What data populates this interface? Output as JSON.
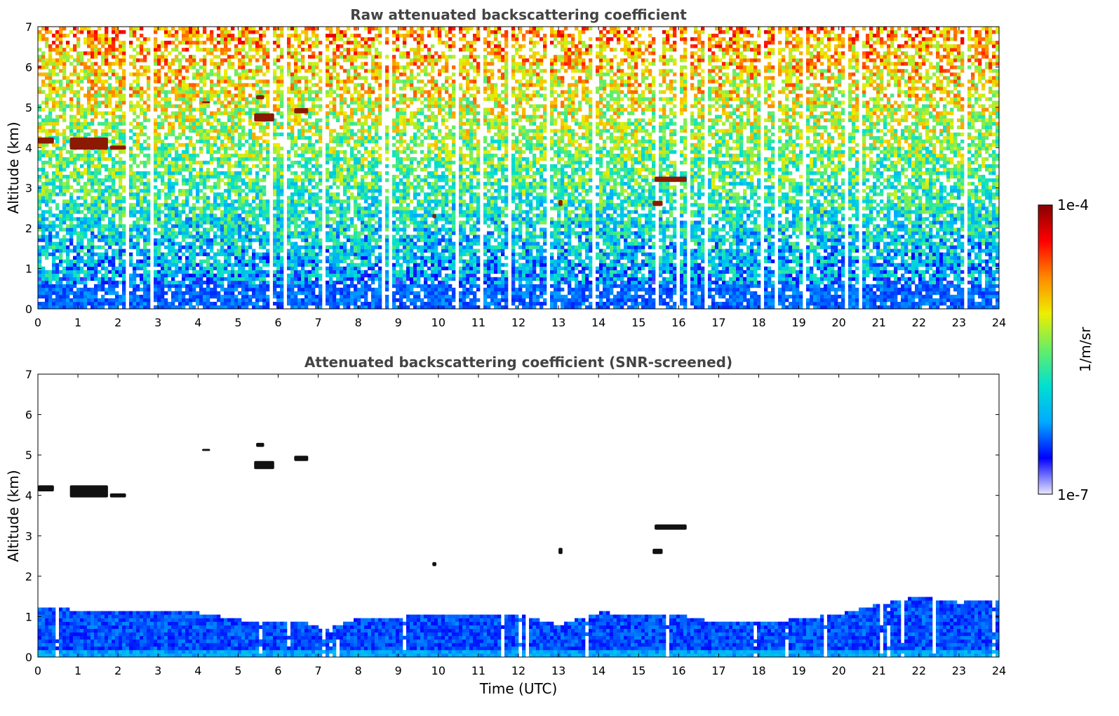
{
  "chart_data": [
    {
      "type": "heatmap",
      "title": "Raw attenuated backscattering coefficient",
      "xlabel": "",
      "ylabel": "Altitude (km)",
      "xlim": [
        0,
        24
      ],
      "ylim": [
        0,
        7
      ],
      "xticks": [
        0,
        1,
        2,
        3,
        4,
        5,
        6,
        7,
        8,
        9,
        10,
        11,
        12,
        13,
        14,
        15,
        16,
        17,
        18,
        19,
        20,
        21,
        22,
        23,
        24
      ],
      "yticks": [
        0,
        1,
        2,
        3,
        4,
        5,
        6,
        7
      ],
      "screened": false,
      "cloud_layers": [
        {
          "t0": 0.0,
          "t1": 0.4,
          "z0": 4.1,
          "z1": 4.25
        },
        {
          "t0": 0.8,
          "t1": 1.75,
          "z0": 3.95,
          "z1": 4.25
        },
        {
          "t0": 1.8,
          "t1": 2.2,
          "z0": 3.95,
          "z1": 4.05
        },
        {
          "t0": 4.1,
          "t1": 4.3,
          "z0": 5.1,
          "z1": 5.15
        },
        {
          "t0": 5.45,
          "t1": 5.65,
          "z0": 5.2,
          "z1": 5.3
        },
        {
          "t0": 5.4,
          "t1": 5.9,
          "z0": 4.65,
          "z1": 4.85
        },
        {
          "t0": 6.4,
          "t1": 6.75,
          "z0": 4.85,
          "z1": 4.98
        },
        {
          "t0": 9.85,
          "t1": 9.95,
          "z0": 2.25,
          "z1": 2.35
        },
        {
          "t0": 13.0,
          "t1": 13.1,
          "z0": 2.55,
          "z1": 2.7
        },
        {
          "t0": 15.35,
          "t1": 15.6,
          "z0": 2.55,
          "z1": 2.68
        },
        {
          "t0": 15.4,
          "t1": 16.2,
          "z0": 3.15,
          "z1": 3.28
        }
      ]
    },
    {
      "type": "heatmap",
      "title": "Attenuated backscattering coefficient (SNR-screened)",
      "xlabel": "Time (UTC)",
      "ylabel": "Altitude (km)",
      "xlim": [
        0,
        24
      ],
      "ylim": [
        0,
        7
      ],
      "xticks": [
        0,
        1,
        2,
        3,
        4,
        5,
        6,
        7,
        8,
        9,
        10,
        11,
        12,
        13,
        14,
        15,
        16,
        17,
        18,
        19,
        20,
        21,
        22,
        23,
        24
      ],
      "yticks": [
        0,
        1,
        2,
        3,
        4,
        5,
        6,
        7
      ],
      "screened": true,
      "boundary_layer_top": [
        {
          "t": 0,
          "z": 1.2
        },
        {
          "t": 2,
          "z": 1.15
        },
        {
          "t": 4,
          "z": 1.1
        },
        {
          "t": 5.5,
          "z": 0.85
        },
        {
          "t": 6.5,
          "z": 0.9
        },
        {
          "t": 7.2,
          "z": 0.7
        },
        {
          "t": 8,
          "z": 0.95
        },
        {
          "t": 10,
          "z": 1.05
        },
        {
          "t": 12,
          "z": 1.05
        },
        {
          "t": 13,
          "z": 0.8
        },
        {
          "t": 14,
          "z": 1.1
        },
        {
          "t": 16,
          "z": 1.05
        },
        {
          "t": 17,
          "z": 0.85
        },
        {
          "t": 18.5,
          "z": 0.9
        },
        {
          "t": 20,
          "z": 1.05
        },
        {
          "t": 21,
          "z": 1.3
        },
        {
          "t": 22,
          "z": 1.5
        },
        {
          "t": 23,
          "z": 1.35
        },
        {
          "t": 24,
          "z": 1.4
        }
      ],
      "cloud_layers": [
        {
          "t0": 0.0,
          "t1": 0.4,
          "z0": 4.1,
          "z1": 4.25
        },
        {
          "t0": 0.8,
          "t1": 1.75,
          "z0": 3.95,
          "z1": 4.25
        },
        {
          "t0": 1.8,
          "t1": 2.2,
          "z0": 3.95,
          "z1": 4.05
        },
        {
          "t0": 4.1,
          "t1": 4.3,
          "z0": 5.1,
          "z1": 5.15
        },
        {
          "t0": 5.45,
          "t1": 5.65,
          "z0": 5.2,
          "z1": 5.3
        },
        {
          "t0": 5.4,
          "t1": 5.9,
          "z0": 4.65,
          "z1": 4.85
        },
        {
          "t0": 6.4,
          "t1": 6.75,
          "z0": 4.85,
          "z1": 4.98
        },
        {
          "t0": 9.85,
          "t1": 9.95,
          "z0": 2.25,
          "z1": 2.35
        },
        {
          "t0": 13.0,
          "t1": 13.1,
          "z0": 2.55,
          "z1": 2.7
        },
        {
          "t0": 15.35,
          "t1": 15.6,
          "z0": 2.55,
          "z1": 2.68
        },
        {
          "t0": 15.4,
          "t1": 16.2,
          "z0": 3.15,
          "z1": 3.28
        }
      ]
    }
  ],
  "colorbar": {
    "label": "1/m/sr",
    "max_label": "1e-4",
    "min_label": "1e-7",
    "scale": "log",
    "range": [
      1e-07,
      0.0001
    ],
    "colormap": [
      "#e6e6ff",
      "#0000ff",
      "#00aaff",
      "#00e0d0",
      "#66ee66",
      "#eeee00",
      "#ff8800",
      "#ff0000",
      "#880000"
    ]
  }
}
